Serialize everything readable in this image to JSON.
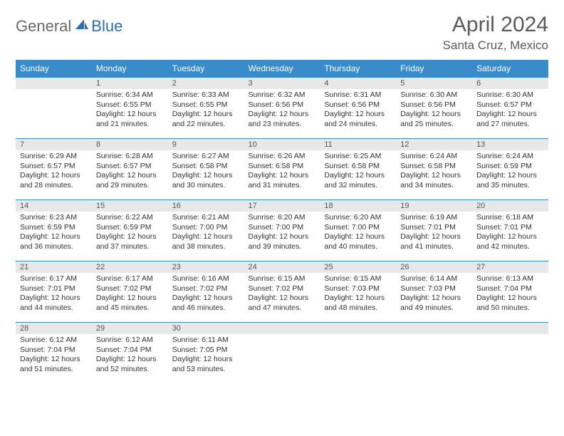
{
  "brand": {
    "general": "General",
    "blue": "Blue",
    "general_color": "#6a6a6a",
    "blue_color": "#2c6fb0",
    "icon_color": "#2c6fb0"
  },
  "header": {
    "month_title": "April 2024",
    "location": "Santa Cruz, Mexico",
    "title_color": "#5a5a5a",
    "title_fontsize": 30,
    "location_fontsize": 17
  },
  "calendar": {
    "header_bg": "#3a8bc9",
    "header_fg": "#ffffff",
    "daynum_bg": "#e8e8e8",
    "divider_color": "#3a8bc9",
    "text_color": "#333333",
    "cell_fontsize": 10.5,
    "columns": [
      "Sunday",
      "Monday",
      "Tuesday",
      "Wednesday",
      "Thursday",
      "Friday",
      "Saturday"
    ],
    "weeks": [
      [
        null,
        {
          "n": "1",
          "sr": "6:34 AM",
          "ss": "6:55 PM",
          "dl": "12 hours and 21 minutes."
        },
        {
          "n": "2",
          "sr": "6:33 AM",
          "ss": "6:55 PM",
          "dl": "12 hours and 22 minutes."
        },
        {
          "n": "3",
          "sr": "6:32 AM",
          "ss": "6:56 PM",
          "dl": "12 hours and 23 minutes."
        },
        {
          "n": "4",
          "sr": "6:31 AM",
          "ss": "6:56 PM",
          "dl": "12 hours and 24 minutes."
        },
        {
          "n": "5",
          "sr": "6:30 AM",
          "ss": "6:56 PM",
          "dl": "12 hours and 25 minutes."
        },
        {
          "n": "6",
          "sr": "6:30 AM",
          "ss": "6:57 PM",
          "dl": "12 hours and 27 minutes."
        }
      ],
      [
        {
          "n": "7",
          "sr": "6:29 AM",
          "ss": "6:57 PM",
          "dl": "12 hours and 28 minutes."
        },
        {
          "n": "8",
          "sr": "6:28 AM",
          "ss": "6:57 PM",
          "dl": "12 hours and 29 minutes."
        },
        {
          "n": "9",
          "sr": "6:27 AM",
          "ss": "6:58 PM",
          "dl": "12 hours and 30 minutes."
        },
        {
          "n": "10",
          "sr": "6:26 AM",
          "ss": "6:58 PM",
          "dl": "12 hours and 31 minutes."
        },
        {
          "n": "11",
          "sr": "6:25 AM",
          "ss": "6:58 PM",
          "dl": "12 hours and 32 minutes."
        },
        {
          "n": "12",
          "sr": "6:24 AM",
          "ss": "6:58 PM",
          "dl": "12 hours and 34 minutes."
        },
        {
          "n": "13",
          "sr": "6:24 AM",
          "ss": "6:59 PM",
          "dl": "12 hours and 35 minutes."
        }
      ],
      [
        {
          "n": "14",
          "sr": "6:23 AM",
          "ss": "6:59 PM",
          "dl": "12 hours and 36 minutes."
        },
        {
          "n": "15",
          "sr": "6:22 AM",
          "ss": "6:59 PM",
          "dl": "12 hours and 37 minutes."
        },
        {
          "n": "16",
          "sr": "6:21 AM",
          "ss": "7:00 PM",
          "dl": "12 hours and 38 minutes."
        },
        {
          "n": "17",
          "sr": "6:20 AM",
          "ss": "7:00 PM",
          "dl": "12 hours and 39 minutes."
        },
        {
          "n": "18",
          "sr": "6:20 AM",
          "ss": "7:00 PM",
          "dl": "12 hours and 40 minutes."
        },
        {
          "n": "19",
          "sr": "6:19 AM",
          "ss": "7:01 PM",
          "dl": "12 hours and 41 minutes."
        },
        {
          "n": "20",
          "sr": "6:18 AM",
          "ss": "7:01 PM",
          "dl": "12 hours and 42 minutes."
        }
      ],
      [
        {
          "n": "21",
          "sr": "6:17 AM",
          "ss": "7:01 PM",
          "dl": "12 hours and 44 minutes."
        },
        {
          "n": "22",
          "sr": "6:17 AM",
          "ss": "7:02 PM",
          "dl": "12 hours and 45 minutes."
        },
        {
          "n": "23",
          "sr": "6:16 AM",
          "ss": "7:02 PM",
          "dl": "12 hours and 46 minutes."
        },
        {
          "n": "24",
          "sr": "6:15 AM",
          "ss": "7:02 PM",
          "dl": "12 hours and 47 minutes."
        },
        {
          "n": "25",
          "sr": "6:15 AM",
          "ss": "7:03 PM",
          "dl": "12 hours and 48 minutes."
        },
        {
          "n": "26",
          "sr": "6:14 AM",
          "ss": "7:03 PM",
          "dl": "12 hours and 49 minutes."
        },
        {
          "n": "27",
          "sr": "6:13 AM",
          "ss": "7:04 PM",
          "dl": "12 hours and 50 minutes."
        }
      ],
      [
        {
          "n": "28",
          "sr": "6:12 AM",
          "ss": "7:04 PM",
          "dl": "12 hours and 51 minutes."
        },
        {
          "n": "29",
          "sr": "6:12 AM",
          "ss": "7:04 PM",
          "dl": "12 hours and 52 minutes."
        },
        {
          "n": "30",
          "sr": "6:11 AM",
          "ss": "7:05 PM",
          "dl": "12 hours and 53 minutes."
        },
        null,
        null,
        null,
        null
      ]
    ],
    "labels": {
      "sunrise": "Sunrise:",
      "sunset": "Sunset:",
      "daylight": "Daylight:"
    }
  }
}
